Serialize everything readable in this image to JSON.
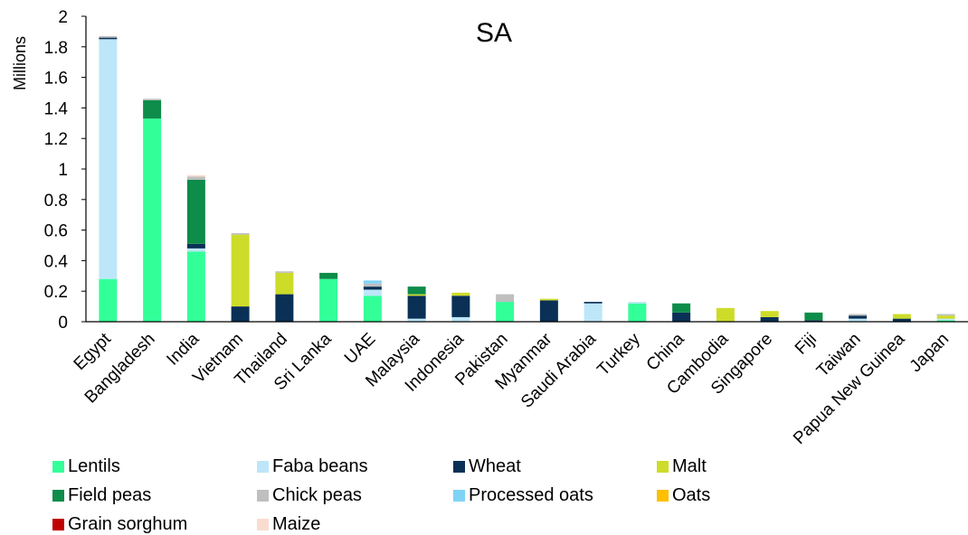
{
  "chart_data": {
    "type": "bar",
    "stacked": true,
    "title": "SA",
    "xlabel": "",
    "ylabel": "Millions",
    "ylim": [
      0,
      2
    ],
    "yticks": [
      "0",
      "0.2",
      "0.4",
      "0.6",
      "0.8",
      "1",
      "1.2",
      "1.4",
      "1.6",
      "1.8",
      "2"
    ],
    "grid": false,
    "legend_position": "bottom",
    "categories": [
      "Egypt",
      "Bangladesh",
      "India",
      "Vietnam",
      "Thailand",
      "Sri Lanka",
      "UAE",
      "Malaysia",
      "Indonesia",
      "Pakistan",
      "Myanmar",
      "Saudi Arabia",
      "Turkey",
      "China",
      "Cambodia",
      "Singapore",
      "Fiji",
      "Taiwan",
      "Papua New Guinea",
      "Japan"
    ],
    "series": [
      {
        "name": "Lentils",
        "color": "#33FF99",
        "values": [
          0.28,
          1.33,
          0.46,
          0,
          0,
          0.28,
          0.17,
          0,
          0,
          0.13,
          0,
          0,
          0.12,
          0,
          0,
          0,
          0,
          0,
          0,
          0.01
        ]
      },
      {
        "name": "Faba beans",
        "color": "#BDE6F9",
        "values": [
          1.57,
          0,
          0.02,
          0,
          0,
          0,
          0.04,
          0.02,
          0.03,
          0,
          0,
          0.12,
          0.01,
          0,
          0,
          0,
          0,
          0.02,
          0,
          0.01
        ]
      },
      {
        "name": "Wheat",
        "color": "#0A3055",
        "values": [
          0.01,
          0,
          0.03,
          0.1,
          0.18,
          0,
          0.02,
          0.15,
          0.14,
          0,
          0.14,
          0.01,
          0,
          0.06,
          0,
          0.03,
          0.01,
          0.02,
          0.02,
          0
        ]
      },
      {
        "name": "Malt",
        "color": "#CDDC29",
        "values": [
          0,
          0,
          0,
          0.47,
          0.14,
          0,
          0,
          0.01,
          0.02,
          0,
          0.01,
          0,
          0,
          0,
          0.09,
          0.04,
          0,
          0,
          0.03,
          0.02
        ]
      },
      {
        "name": "Field peas",
        "color": "#0E8C4A",
        "values": [
          0,
          0.12,
          0.42,
          0,
          0,
          0.04,
          0,
          0.05,
          0,
          0,
          0,
          0,
          0,
          0.06,
          0,
          0,
          0.05,
          0,
          0,
          0
        ]
      },
      {
        "name": "Chick peas",
        "color": "#BFBFBF",
        "values": [
          0.01,
          0.01,
          0.02,
          0.01,
          0.01,
          0,
          0.02,
          0,
          0,
          0.05,
          0,
          0,
          0,
          0,
          0,
          0,
          0,
          0.01,
          0,
          0.01
        ]
      },
      {
        "name": "Processed oats",
        "color": "#7FD3F6",
        "values": [
          0,
          0,
          0,
          0,
          0,
          0,
          0.02,
          0,
          0,
          0,
          0,
          0,
          0,
          0,
          0,
          0,
          0,
          0,
          0,
          0
        ]
      },
      {
        "name": "Oats",
        "color": "#FFC000",
        "values": [
          0,
          0,
          0,
          0,
          0,
          0,
          0,
          0,
          0,
          0,
          0,
          0,
          0,
          0,
          0,
          0,
          0,
          0,
          0,
          0
        ]
      },
      {
        "name": "Grain sorghum",
        "color": "#C00000",
        "values": [
          0,
          0,
          0,
          0,
          0,
          0,
          0,
          0,
          0,
          0,
          0,
          0,
          0,
          0,
          0,
          0,
          0,
          0,
          0,
          0
        ]
      },
      {
        "name": "Maize",
        "color": "#F9DCCF",
        "values": [
          0,
          0,
          0.01,
          0,
          0,
          0,
          0,
          0,
          0,
          0,
          0,
          0,
          0,
          0,
          0,
          0,
          0,
          0,
          0,
          0
        ]
      }
    ]
  }
}
